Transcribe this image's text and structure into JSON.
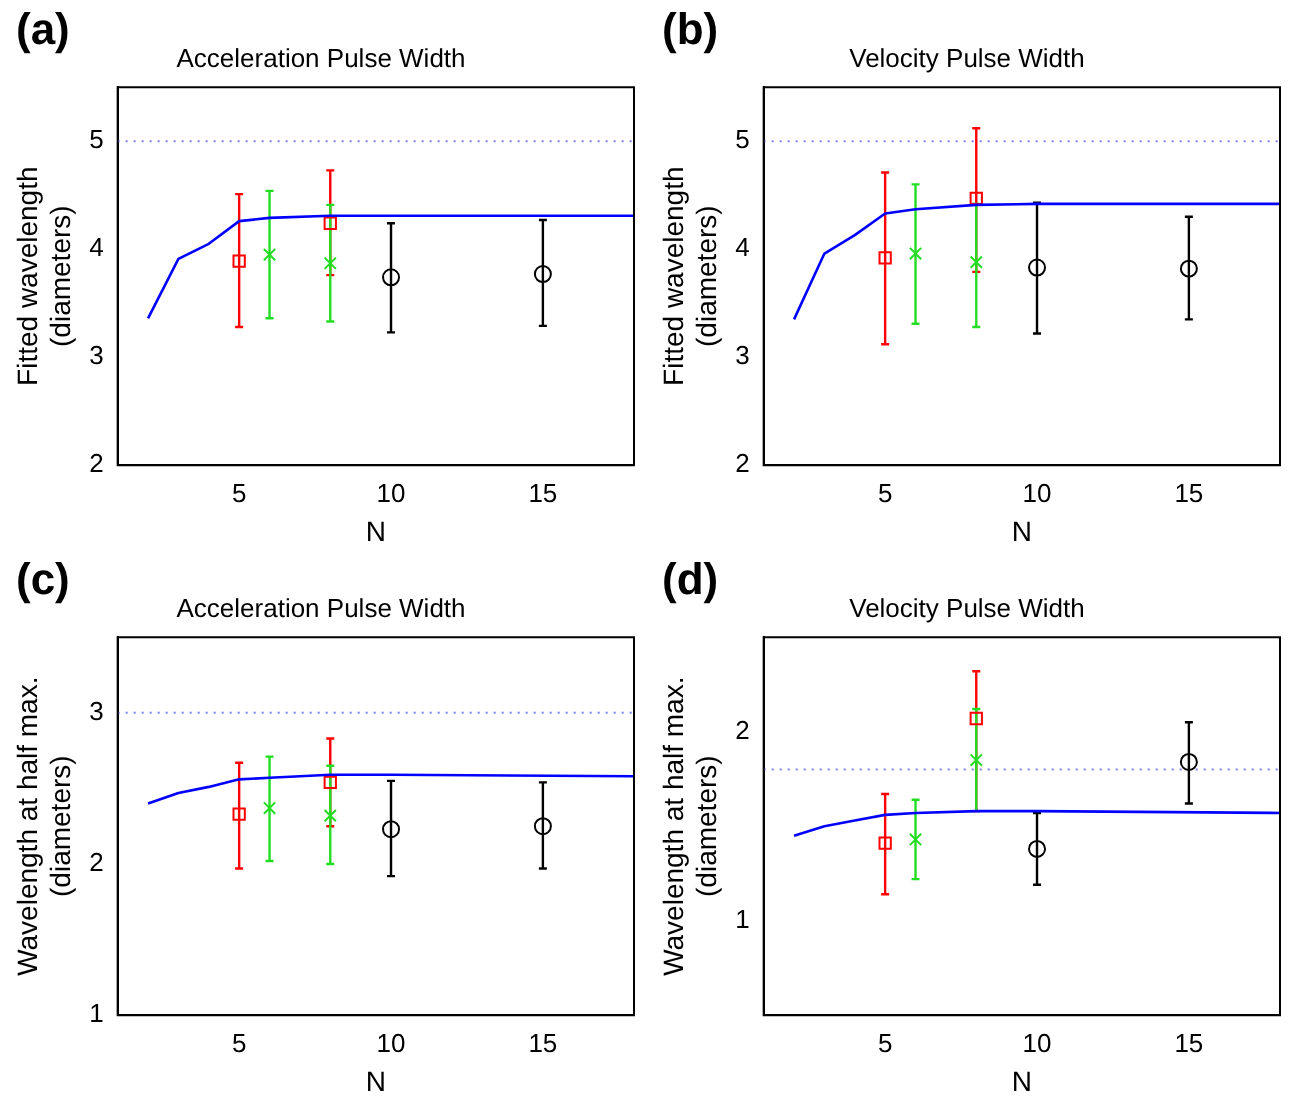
{
  "chart_data": [
    {
      "type": "scatter",
      "title": "Acceleration Pulse Width",
      "xlabel": "N",
      "ylabel": "Fitted wavelength\n(diameters)",
      "annotations": [
        "(a)"
      ],
      "xlim": [
        1,
        18
      ],
      "xticks": [
        5,
        10,
        15
      ],
      "ylim": [
        2,
        5.5
      ],
      "yticks": [
        2,
        3,
        4,
        5
      ],
      "grid": false,
      "legend": false,
      "ref_lines": [
        {
          "axis": "y",
          "value": 5,
          "color": "#8080ff",
          "line_style": "dotted"
        }
      ],
      "series": [
        {
          "type": "line",
          "color": "#0000ff",
          "x": [
            2,
            3,
            4,
            5,
            6,
            8,
            10,
            18
          ],
          "values": [
            3.36,
            3.91,
            4.05,
            4.26,
            4.29,
            4.31,
            4.31,
            4.31
          ],
          "marker": "none",
          "line_style": "solid"
        },
        {
          "color": "#ff0000",
          "x": [
            5,
            8
          ],
          "values": [
            3.89,
            4.24
          ],
          "errors": [
            [
              3.28,
              4.51
            ],
            [
              3.76,
              4.73
            ]
          ],
          "marker": "square"
        },
        {
          "color": "#22dd22",
          "x": [
            6,
            8
          ],
          "values": [
            3.95,
            3.87
          ],
          "errors": [
            [
              3.36,
              4.54
            ],
            [
              3.33,
              4.41
            ]
          ],
          "marker": "cross"
        },
        {
          "color": "#000000",
          "x": [
            10,
            15
          ],
          "values": [
            3.74,
            3.77
          ],
          "errors": [
            [
              3.23,
              4.24
            ],
            [
              3.29,
              4.27
            ]
          ],
          "marker": "circle"
        }
      ]
    },
    {
      "type": "scatter",
      "title": "Velocity Pulse Width",
      "xlabel": "N",
      "ylabel": "Fitted wavelength\n(diameters)",
      "annotations": [
        "(b)"
      ],
      "xlim": [
        1,
        18
      ],
      "xticks": [
        5,
        10,
        15
      ],
      "ylim": [
        2,
        5.5
      ],
      "yticks": [
        2,
        3,
        4,
        5
      ],
      "grid": false,
      "legend": false,
      "ref_lines": [
        {
          "axis": "y",
          "value": 5,
          "color": "#8080ff",
          "line_style": "dotted"
        }
      ],
      "series": [
        {
          "type": "line",
          "color": "#0000ff",
          "x": [
            2,
            3,
            4,
            5,
            6,
            8,
            10,
            18
          ],
          "values": [
            3.35,
            3.96,
            4.13,
            4.33,
            4.37,
            4.41,
            4.42,
            4.42
          ],
          "marker": "none",
          "line_style": "solid"
        },
        {
          "color": "#ff0000",
          "x": [
            5,
            8
          ],
          "values": [
            3.92,
            4.47
          ],
          "errors": [
            [
              3.12,
              4.71
            ],
            [
              3.79,
              5.12
            ]
          ],
          "marker": "square"
        },
        {
          "color": "#22dd22",
          "x": [
            6,
            8
          ],
          "values": [
            3.96,
            3.88
          ],
          "errors": [
            [
              3.31,
              4.6
            ],
            [
              3.28,
              4.42
            ]
          ],
          "marker": "cross"
        },
        {
          "color": "#000000",
          "x": [
            10,
            15
          ],
          "values": [
            3.83,
            3.82
          ],
          "errors": [
            [
              3.22,
              4.43
            ],
            [
              3.35,
              4.3
            ]
          ],
          "marker": "circle"
        }
      ]
    },
    {
      "type": "scatter",
      "title": "Acceleration Pulse Width",
      "xlabel": "N",
      "ylabel": "Wavelength at half max.\n(diameters)",
      "annotations": [
        "(c)"
      ],
      "xlim": [
        1,
        18
      ],
      "xticks": [
        5,
        10,
        15
      ],
      "ylim": [
        1,
        3.5
      ],
      "yticks": [
        1,
        2,
        3
      ],
      "grid": false,
      "legend": false,
      "ref_lines": [
        {
          "axis": "y",
          "value": 3,
          "color": "#8080ff",
          "line_style": "dotted"
        }
      ],
      "series": [
        {
          "type": "line",
          "color": "#0000ff",
          "x": [
            2,
            3,
            4,
            5,
            6,
            8,
            10,
            18
          ],
          "values": [
            2.4,
            2.47,
            2.51,
            2.56,
            2.57,
            2.59,
            2.59,
            2.58
          ],
          "marker": "none",
          "line_style": "solid"
        },
        {
          "color": "#ff0000",
          "x": [
            5,
            8
          ],
          "values": [
            2.33,
            2.54
          ],
          "errors": [
            [
              1.97,
              2.67
            ],
            [
              2.25,
              2.83
            ]
          ],
          "marker": "square"
        },
        {
          "color": "#22dd22",
          "x": [
            6,
            8
          ],
          "values": [
            2.37,
            2.32
          ],
          "errors": [
            [
              2.02,
              2.71
            ],
            [
              2.0,
              2.65
            ]
          ],
          "marker": "cross"
        },
        {
          "color": "#000000",
          "x": [
            10,
            15
          ],
          "values": [
            2.23,
            2.25
          ],
          "errors": [
            [
              1.92,
              2.55
            ],
            [
              1.97,
              2.54
            ]
          ],
          "marker": "circle"
        }
      ]
    },
    {
      "type": "scatter",
      "title": "Velocity Pulse Width",
      "xlabel": "N",
      "ylabel": "Wavelength at half max.\n(diameters)",
      "annotations": [
        "(d)"
      ],
      "xlim": [
        1,
        18
      ],
      "xticks": [
        5,
        10,
        15
      ],
      "ylim": [
        0.5,
        2.5
      ],
      "yticks": [
        1,
        2
      ],
      "grid": false,
      "legend": false,
      "ref_lines": [
        {
          "axis": "y",
          "value": 1.8,
          "color": "#8080ff",
          "line_style": "dotted"
        }
      ],
      "series": [
        {
          "type": "line",
          "color": "#0000ff",
          "x": [
            2,
            3,
            4,
            5,
            6,
            8,
            10,
            18
          ],
          "values": [
            1.45,
            1.5,
            1.53,
            1.56,
            1.57,
            1.58,
            1.58,
            1.57
          ],
          "marker": "none",
          "line_style": "solid"
        },
        {
          "color": "#ff0000",
          "x": [
            5,
            8
          ],
          "values": [
            1.41,
            2.07
          ],
          "errors": [
            [
              1.14,
              1.67
            ],
            [
              1.58,
              2.32
            ]
          ],
          "marker": "square"
        },
        {
          "color": "#22dd22",
          "x": [
            6,
            8
          ],
          "values": [
            1.43,
            1.85
          ],
          "errors": [
            [
              1.22,
              1.64
            ],
            [
              1.58,
              2.12
            ]
          ],
          "marker": "cross"
        },
        {
          "color": "#000000",
          "x": [
            10,
            15
          ],
          "values": [
            1.38,
            1.84
          ],
          "errors": [
            [
              1.19,
              1.57
            ],
            [
              1.62,
              2.05
            ]
          ],
          "marker": "circle"
        }
      ]
    }
  ]
}
